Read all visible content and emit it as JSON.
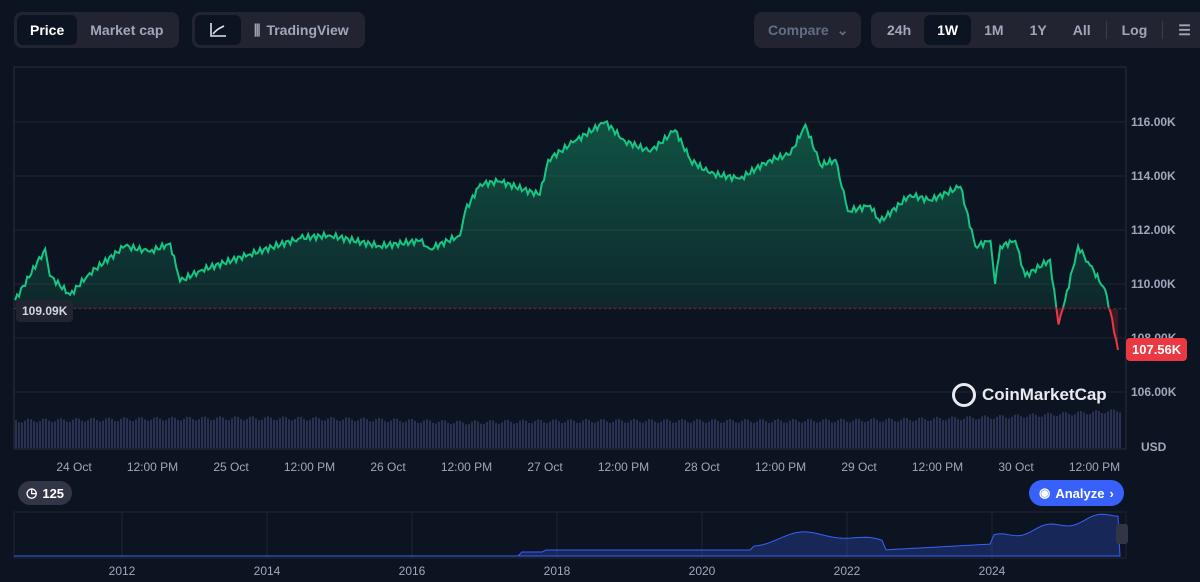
{
  "toolbar": {
    "price": "Price",
    "market_cap": "Market cap",
    "line_icon": "line-chart-icon",
    "tradingview": "TradingView",
    "compare": "Compare",
    "ranges": [
      "24h",
      "1W",
      "1M",
      "1Y",
      "All"
    ],
    "active_range": "1W",
    "log": "Log"
  },
  "current_price_label": "107.56K",
  "open_price_label": "109.09K",
  "watermark": "CoinMarketCap",
  "currency": "USD",
  "events_count": "125",
  "analyze": "Analyze",
  "colors": {
    "up": "#16c784",
    "down": "#ea3943",
    "accent": "#3861fb"
  },
  "chart_data": {
    "type": "line",
    "title": "",
    "xlabel": "",
    "ylabel": "USD",
    "ylim": [
      105.5,
      117.2
    ],
    "baseline": 109.09,
    "y_ticks": [
      {
        "v": 106,
        "label": "106.00K"
      },
      {
        "v": 108,
        "label": "108.00K"
      },
      {
        "v": 110,
        "label": "110.00K"
      },
      {
        "v": 112,
        "label": "112.00K"
      },
      {
        "v": 114,
        "label": "114.00K"
      },
      {
        "v": 116,
        "label": "116.00K"
      }
    ],
    "x_ticks": [
      {
        "h": 0,
        "label": "24 Oct"
      },
      {
        "h": 12,
        "label": "12:00 PM"
      },
      {
        "h": 24,
        "label": "25 Oct"
      },
      {
        "h": 36,
        "label": "12:00 PM"
      },
      {
        "h": 48,
        "label": "26 Oct"
      },
      {
        "h": 60,
        "label": "12:00 PM"
      },
      {
        "h": 72,
        "label": "27 Oct"
      },
      {
        "h": 84,
        "label": "12:00 PM"
      },
      {
        "h": 96,
        "label": "28 Oct"
      },
      {
        "h": 108,
        "label": "12:00 PM"
      },
      {
        "h": 120,
        "label": "29 Oct"
      },
      {
        "h": 132,
        "label": "12:00 PM"
      },
      {
        "h": 144,
        "label": "30 Oct"
      },
      {
        "h": 156,
        "label": "12:00 PM"
      }
    ],
    "x_unit": "hours since 24 Oct 00:00",
    "points": [
      [
        -9,
        109.4
      ],
      [
        -4.4,
        111.3
      ],
      [
        -3.7,
        110.3
      ],
      [
        -0.6,
        109.6
      ],
      [
        2.4,
        110.4
      ],
      [
        7.8,
        111.4
      ],
      [
        11.6,
        111.2
      ],
      [
        14.7,
        111.5
      ],
      [
        16.2,
        110.1
      ],
      [
        19.3,
        110.5
      ],
      [
        26.9,
        111.1
      ],
      [
        34.6,
        111.7
      ],
      [
        39.1,
        111.8
      ],
      [
        46.8,
        111.4
      ],
      [
        52.9,
        111.6
      ],
      [
        54.4,
        111.3
      ],
      [
        59,
        111.8
      ],
      [
        59.8,
        112.7
      ],
      [
        62.1,
        113.7
      ],
      [
        65.1,
        113.8
      ],
      [
        71.2,
        113.3
      ],
      [
        72.5,
        114.6
      ],
      [
        76.6,
        115.3
      ],
      [
        81.2,
        116.0
      ],
      [
        84.2,
        115.3
      ],
      [
        88.1,
        114.9
      ],
      [
        91.9,
        115.7
      ],
      [
        94.2,
        114.6
      ],
      [
        97.2,
        114.1
      ],
      [
        101.8,
        113.9
      ],
      [
        106.4,
        114.6
      ],
      [
        109.5,
        114.8
      ],
      [
        111.8,
        115.9
      ],
      [
        114.1,
        114.4
      ],
      [
        116.4,
        114.6
      ],
      [
        118.3,
        112.7
      ],
      [
        121.7,
        112.9
      ],
      [
        123.2,
        112.3
      ],
      [
        127.8,
        113.3
      ],
      [
        130.9,
        113.1
      ],
      [
        135.5,
        113.6
      ],
      [
        137.8,
        111.4
      ],
      [
        140.1,
        111.6
      ],
      [
        140.8,
        110.0
      ],
      [
        141.6,
        111.4
      ],
      [
        143.9,
        111.6
      ],
      [
        145.4,
        110.3
      ],
      [
        149.2,
        110.9
      ],
      [
        150.5,
        108.5
      ],
      [
        151.5,
        109.4
      ],
      [
        153.5,
        111.4
      ],
      [
        155.3,
        110.7
      ],
      [
        157.6,
        109.8
      ],
      [
        158.7,
        108.7
      ],
      [
        159.6,
        107.56
      ]
    ],
    "overview": {
      "x_ticks": [
        "2012",
        "2014",
        "2016",
        "2018",
        "2020",
        "2022",
        "2024"
      ]
    }
  }
}
